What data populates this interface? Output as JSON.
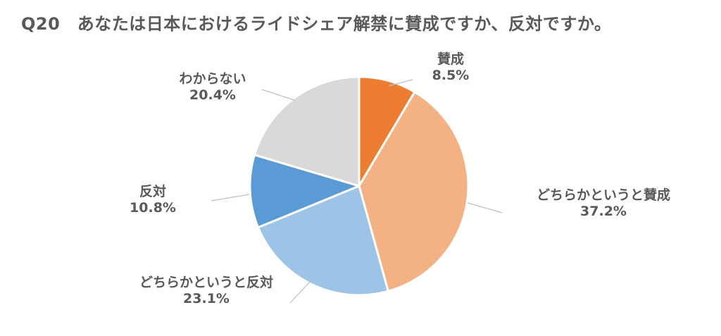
{
  "chart_data": {
    "type": "pie",
    "title": "Q20　あなたは日本におけるライドシェア解禁に賛成ですか、反対ですか。",
    "categories": [
      "賛成",
      "どちらかというと賛成",
      "どちらかというと反対",
      "反対",
      "わからない"
    ],
    "values": [
      8.5,
      37.2,
      23.1,
      10.8,
      20.4
    ],
    "value_labels": [
      "8.5%",
      "37.2%",
      "23.1%",
      "10.8%",
      "20.4%"
    ],
    "colors": [
      "#ed7d31",
      "#f4b183",
      "#9dc3e6",
      "#5b9bd5",
      "#d9d9d9"
    ],
    "start_angle": "12 o'clock",
    "direction": "clockwise",
    "legend": "none",
    "data_labels": "outside with leader lines"
  }
}
